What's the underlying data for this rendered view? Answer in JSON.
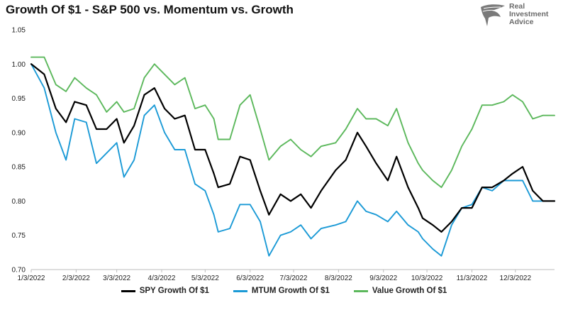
{
  "chart_data": {
    "type": "line",
    "title": "Growth Of $1 - S&P 500 vs. Momentum vs. Growth",
    "xlabel": "",
    "ylabel": "",
    "ylim": [
      0.7,
      1.05
    ],
    "yticks": [
      "1.05",
      "1.00",
      "0.95",
      "0.90",
      "0.85",
      "0.80",
      "0.75",
      "0.70"
    ],
    "xlim": [
      "2022-01-03",
      "2022-12-30"
    ],
    "xticks": [
      {
        "label": "1/3/2022",
        "date": "2022-01-03"
      },
      {
        "label": "2/3/2022",
        "date": "2022-02-03"
      },
      {
        "label": "3/3/2022",
        "date": "2022-03-03"
      },
      {
        "label": "4/3/2022",
        "date": "2022-04-03"
      },
      {
        "label": "5/3/2022",
        "date": "2022-05-03"
      },
      {
        "label": "6/3/2022",
        "date": "2022-06-03"
      },
      {
        "label": "7/3/2022",
        "date": "2022-07-03"
      },
      {
        "label": "8/3/2022",
        "date": "2022-08-03"
      },
      {
        "label": "9/3/2022",
        "date": "2022-09-03"
      },
      {
        "label": "10/3/2022",
        "date": "2022-10-03"
      },
      {
        "label": "11/3/2022",
        "date": "2022-11-03"
      },
      {
        "label": "12/3/2022",
        "date": "2022-12-03"
      }
    ],
    "grid": false,
    "legend_position": "bottom",
    "x": [
      "2022-01-03",
      "2022-01-12",
      "2022-01-20",
      "2022-01-27",
      "2022-02-02",
      "2022-02-10",
      "2022-02-17",
      "2022-02-24",
      "2022-03-03",
      "2022-03-08",
      "2022-03-15",
      "2022-03-22",
      "2022-03-29",
      "2022-04-05",
      "2022-04-12",
      "2022-04-19",
      "2022-04-26",
      "2022-05-03",
      "2022-05-09",
      "2022-05-12",
      "2022-05-20",
      "2022-05-27",
      "2022-06-03",
      "2022-06-10",
      "2022-06-16",
      "2022-06-24",
      "2022-07-01",
      "2022-07-08",
      "2022-07-15",
      "2022-07-22",
      "2022-08-01",
      "2022-08-08",
      "2022-08-16",
      "2022-08-22",
      "2022-08-29",
      "2022-09-06",
      "2022-09-12",
      "2022-09-20",
      "2022-09-27",
      "2022-09-30",
      "2022-10-07",
      "2022-10-13",
      "2022-10-20",
      "2022-10-27",
      "2022-11-03",
      "2022-11-10",
      "2022-11-17",
      "2022-11-25",
      "2022-12-01",
      "2022-12-08",
      "2022-12-15",
      "2022-12-22",
      "2022-12-30"
    ],
    "series": [
      {
        "name": "SPY Growth Of $1",
        "color": "#000000",
        "values": [
          1.0,
          0.985,
          0.935,
          0.915,
          0.945,
          0.94,
          0.905,
          0.905,
          0.92,
          0.885,
          0.91,
          0.955,
          0.965,
          0.935,
          0.92,
          0.925,
          0.875,
          0.875,
          0.84,
          0.82,
          0.825,
          0.865,
          0.86,
          0.815,
          0.78,
          0.81,
          0.8,
          0.81,
          0.79,
          0.815,
          0.845,
          0.86,
          0.9,
          0.88,
          0.855,
          0.83,
          0.865,
          0.82,
          0.79,
          0.775,
          0.765,
          0.755,
          0.77,
          0.79,
          0.79,
          0.82,
          0.82,
          0.83,
          0.84,
          0.85,
          0.815,
          0.8,
          0.8
        ]
      },
      {
        "name": "MTUM Growth Of $1",
        "color": "#1b9ad6",
        "values": [
          1.0,
          0.965,
          0.9,
          0.86,
          0.92,
          0.915,
          0.855,
          0.87,
          0.885,
          0.835,
          0.86,
          0.925,
          0.94,
          0.9,
          0.875,
          0.875,
          0.825,
          0.815,
          0.78,
          0.755,
          0.76,
          0.795,
          0.795,
          0.77,
          0.72,
          0.75,
          0.755,
          0.765,
          0.745,
          0.76,
          0.765,
          0.77,
          0.8,
          0.785,
          0.78,
          0.77,
          0.785,
          0.765,
          0.755,
          0.745,
          0.73,
          0.72,
          0.765,
          0.79,
          0.795,
          0.82,
          0.815,
          0.83,
          0.83,
          0.83,
          0.8,
          0.8,
          0.8
        ]
      },
      {
        "name": "Value Growth Of $1",
        "color": "#5cb85c",
        "values": [
          1.01,
          1.01,
          0.97,
          0.96,
          0.98,
          0.965,
          0.955,
          0.93,
          0.945,
          0.93,
          0.935,
          0.98,
          1.0,
          0.985,
          0.97,
          0.98,
          0.935,
          0.94,
          0.92,
          0.89,
          0.89,
          0.94,
          0.955,
          0.905,
          0.86,
          0.88,
          0.89,
          0.875,
          0.865,
          0.88,
          0.885,
          0.905,
          0.935,
          0.92,
          0.92,
          0.91,
          0.935,
          0.885,
          0.855,
          0.845,
          0.83,
          0.82,
          0.845,
          0.88,
          0.905,
          0.94,
          0.94,
          0.945,
          0.955,
          0.945,
          0.92,
          0.925,
          0.925
        ]
      }
    ]
  },
  "brand": {
    "line1": "Real",
    "line2": "Investment",
    "line3": "Advice"
  },
  "legend": [
    {
      "label": "SPY Growth Of $1",
      "color": "#000000"
    },
    {
      "label": "MTUM Growth Of $1",
      "color": "#1b9ad6"
    },
    {
      "label": "Value Growth Of $1",
      "color": "#5cb85c"
    }
  ]
}
